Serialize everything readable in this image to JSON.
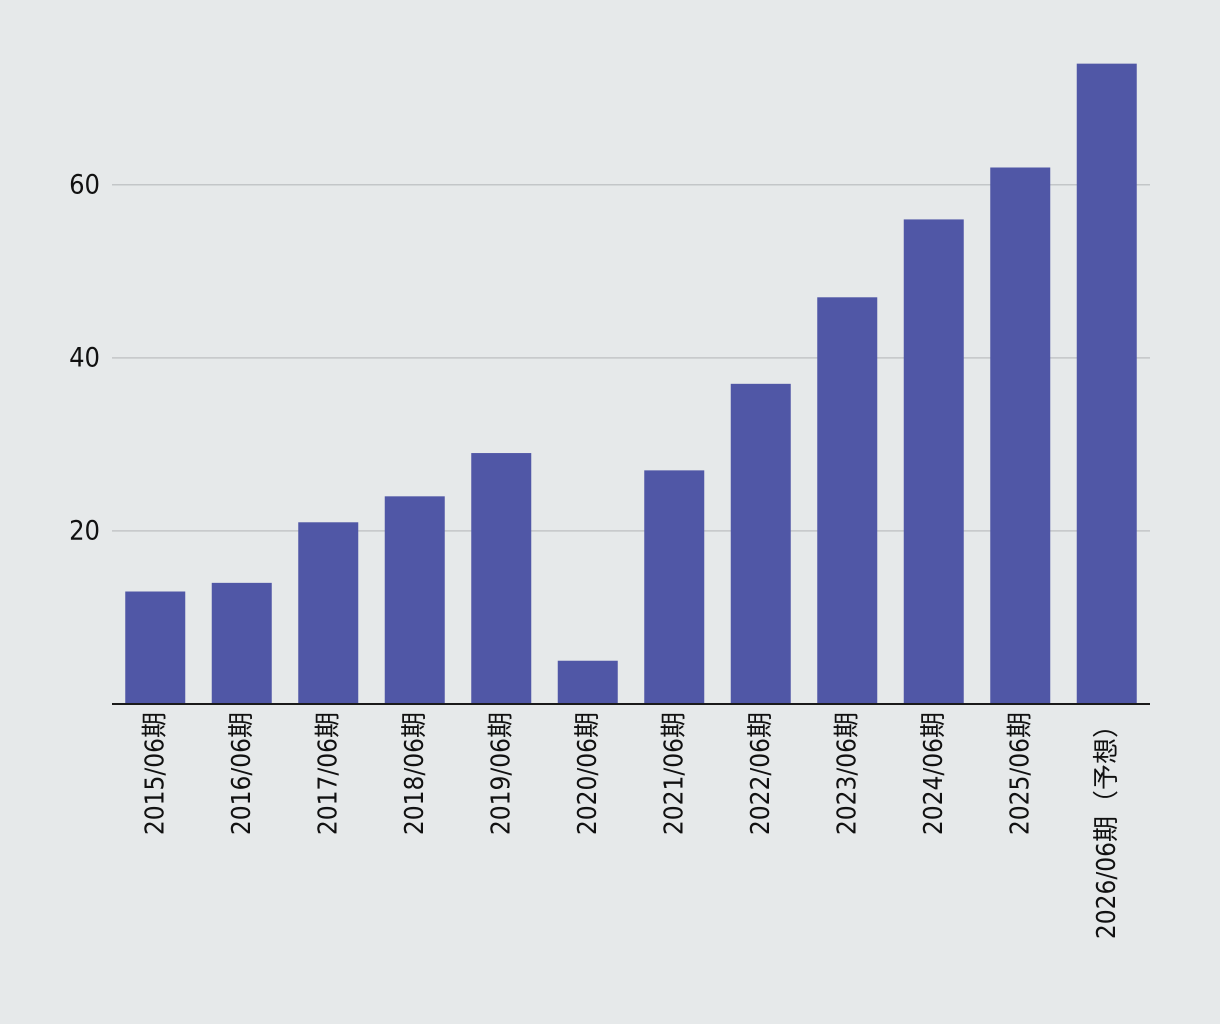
{
  "chart_data": {
    "type": "bar",
    "title": "",
    "xlabel": "",
    "ylabel": "",
    "categories": [
      "2015/06期",
      "2016/06期",
      "2017/06期",
      "2018/06期",
      "2019/06期",
      "2020/06期",
      "2021/06期",
      "2022/06期",
      "2023/06期",
      "2024/06期",
      "2025/06期",
      "2026/06期（予想）"
    ],
    "values": [
      13,
      14,
      21,
      24,
      29,
      5,
      27,
      37,
      47,
      56,
      62,
      74
    ],
    "ylim": [
      0,
      75
    ],
    "yticks": [
      20,
      40,
      60
    ],
    "grid": true,
    "colors": {
      "bar": "#5057a6",
      "grid": "#c3c6c8",
      "axis": "#1a1a1a",
      "background": "#e6e9ea"
    }
  }
}
